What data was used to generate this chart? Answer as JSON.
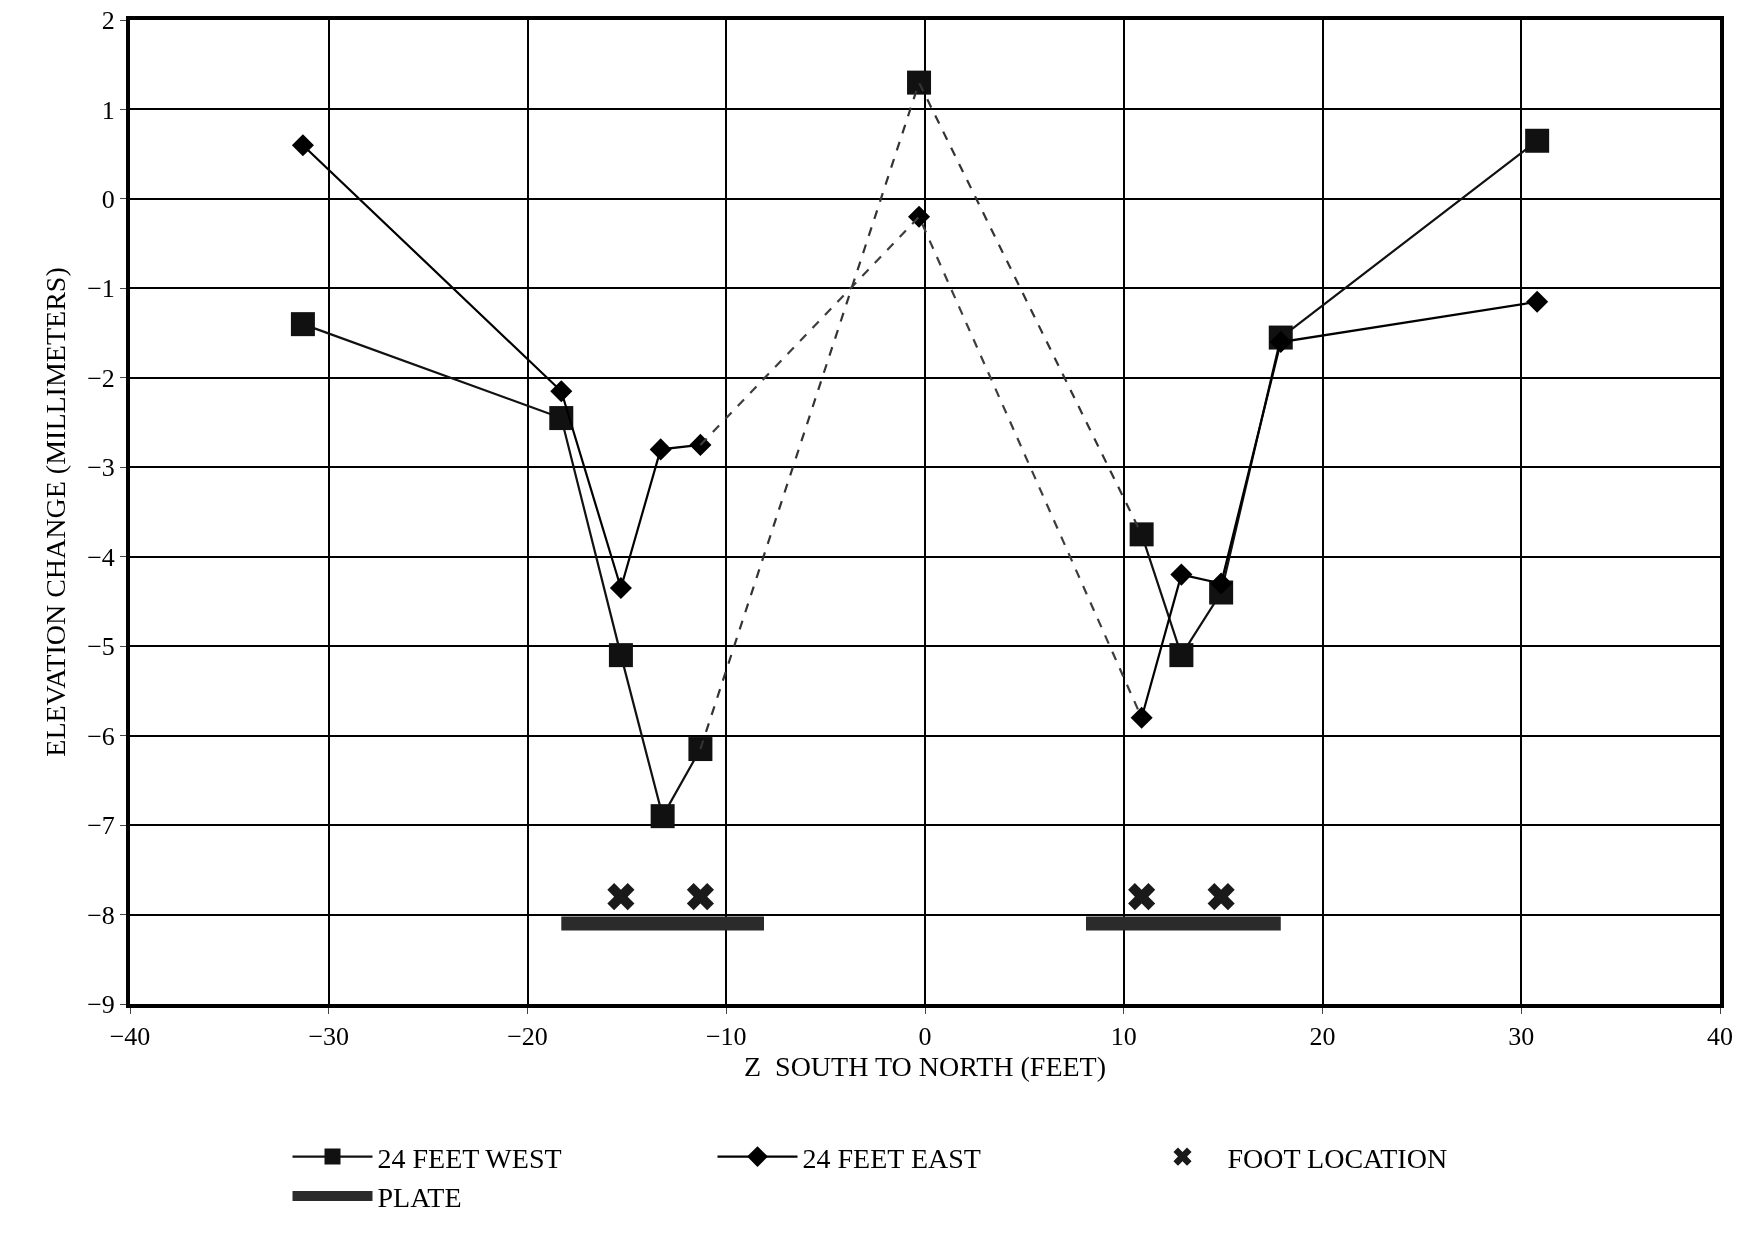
{
  "chart_data": {
    "type": "line",
    "xlabel": "Z  SOUTH TO NORTH (FEET)",
    "ylabel": "ELEVATION CHANGE (MILLIMETERS)",
    "xlim": [
      -40,
      40
    ],
    "xticks": [
      -40,
      -30,
      -20,
      -10,
      0,
      10,
      20,
      30,
      40
    ],
    "ylim": [
      -9,
      2
    ],
    "yticks": [
      -9,
      -8,
      -7,
      -6,
      -5,
      -4,
      -3,
      -2,
      -1,
      0,
      1,
      2
    ],
    "grid": true,
    "legend": "bottom",
    "series": [
      {
        "name": "24 FEET WEST",
        "color": "#111111",
        "marker": "square",
        "line_style": "solid",
        "x": [
          -31.3,
          -18.3,
          -15.3,
          -13.2,
          -11.3,
          null,
          -0.3,
          null,
          10.9,
          12.9,
          14.9,
          17.9,
          30.8
        ],
        "values": [
          -1.4,
          -2.45,
          -5.1,
          -6.9,
          -6.15,
          null,
          1.3,
          null,
          -3.75,
          -5.1,
          -4.4,
          -1.55,
          0.65
        ]
      },
      {
        "name": "24 FEET EAST",
        "color": "#000000",
        "marker": "diamond",
        "line_style": "solid",
        "x": [
          -31.3,
          -18.3,
          -15.3,
          -13.3,
          -11.3,
          null,
          -0.3,
          null,
          10.9,
          12.9,
          14.9,
          17.9,
          30.8
        ],
        "values": [
          0.6,
          -2.15,
          -4.35,
          -2.8,
          -2.75,
          null,
          -0.2,
          null,
          -5.8,
          -4.2,
          -4.3,
          -1.6,
          -1.15
        ]
      },
      {
        "name": "FOOT LOCATION",
        "type": "scatter",
        "color": "#1a1a1a",
        "marker": "cross",
        "x": [
          -15.3,
          -11.3,
          10.9,
          14.9
        ],
        "values": [
          -7.8,
          -7.8,
          -7.8,
          -7.8
        ]
      },
      {
        "name": "PLATE",
        "color": "#2b2b2b",
        "marker": "none",
        "line_style": "solid",
        "x": [
          -18.3,
          -8.1,
          null,
          8.1,
          17.9
        ],
        "values": [
          -8.1,
          -8.1,
          null,
          -8.1,
          -8.1
        ]
      },
      {
        "color": "#333333",
        "marker": "none",
        "line_style": "dashed",
        "x": [
          -11.3,
          -0.3,
          10.9
        ],
        "values": [
          -6.15,
          1.3,
          -3.75
        ]
      },
      {
        "color": "#3d3d3d",
        "marker": "none",
        "line_style": "dashed",
        "x": [
          -11.3,
          -0.3,
          10.9
        ],
        "values": [
          -2.75,
          -0.2,
          -5.8
        ]
      }
    ]
  }
}
